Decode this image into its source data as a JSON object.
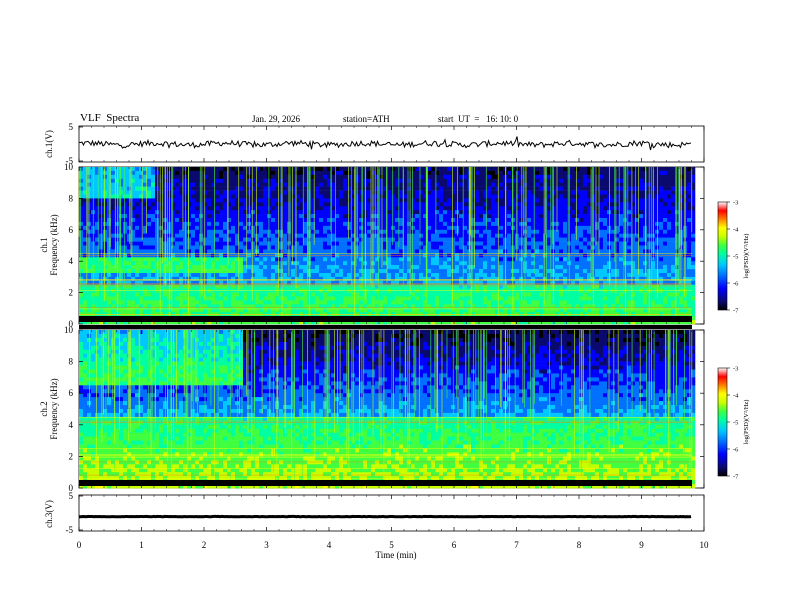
{
  "header": {
    "title": "VLF  Spectra",
    "date": "Jan. 29, 2026",
    "station": "station=ATH",
    "start_ut": "start  UT  =   16: 10: 0"
  },
  "colors": {
    "waveform": "#000000",
    "colormap": [
      "#000000",
      "#0a0a6e",
      "#0000ff",
      "#0070ff",
      "#00c8ff",
      "#00ffa0",
      "#40ff40",
      "#c8ff00",
      "#ffff00",
      "#ff8000",
      "#ff0000",
      "#ffffff"
    ]
  },
  "chart_data": [
    {
      "type": "line",
      "panel": "ch1-waveform",
      "ylabel": "ch.1(V)",
      "ylim": [
        -5,
        5
      ],
      "yticks": [
        "5",
        "-5"
      ],
      "xlim": [
        0,
        10
      ],
      "series": [
        {
          "values_desc": "noisy baseline near 0 V",
          "mean": 0.0,
          "amplitude": 1.0
        }
      ]
    },
    {
      "type": "heatmap",
      "panel": "ch1-spectrogram",
      "ylabel": "ch.1\nFrequency (kHz)",
      "ylabel_lines": [
        "ch.1",
        "Frequency (kHz)"
      ],
      "ylim": [
        0,
        10
      ],
      "yticks": [
        "0",
        "2",
        "4",
        "6",
        "8",
        "10"
      ],
      "xlim": [
        0,
        10
      ],
      "colorbar": {
        "label": "log(PSD)(V²/Hz)",
        "range": [
          -7,
          -3
        ],
        "ticks": [
          "-3",
          "-4",
          "-5",
          "-6",
          "-7"
        ]
      }
    },
    {
      "type": "heatmap",
      "panel": "ch2-spectrogram",
      "ylabel": "ch.2\nFrequency (kHz)",
      "ylabel_lines": [
        "ch.2",
        "Frequency (kHz)"
      ],
      "ylim": [
        0,
        10
      ],
      "yticks": [
        "0",
        "2",
        "4",
        "6",
        "8",
        "10"
      ],
      "xlim": [
        0,
        10
      ],
      "colorbar": {
        "label": "log(PSD)(V²/Hz)",
        "range": [
          -7,
          -3
        ],
        "ticks": [
          "-3",
          "-4",
          "-5",
          "-6",
          "-7"
        ]
      }
    },
    {
      "type": "line",
      "panel": "ch3-waveform",
      "ylabel": "ch.3(V)",
      "ylim": [
        -5,
        5
      ],
      "yticks": [
        "5",
        "-5"
      ],
      "xlim": [
        0,
        10
      ],
      "xlabel": "Time  (min)",
      "xticks": [
        "0",
        "1",
        "2",
        "3",
        "4",
        "5",
        "6",
        "7",
        "8",
        "9",
        "10"
      ],
      "series": [
        {
          "values_desc": "flat line near -1 V",
          "mean": -1.0,
          "amplitude": 0.05
        }
      ]
    }
  ]
}
